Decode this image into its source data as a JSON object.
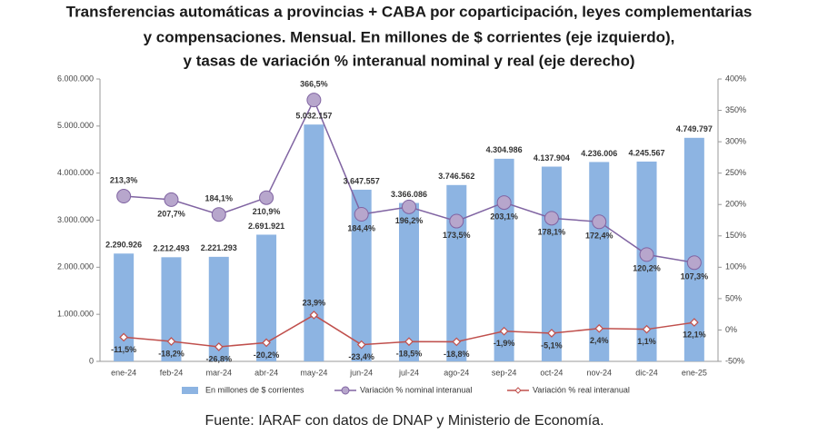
{
  "chart_data": {
    "type": "bar-line",
    "title": [
      "Transferencias automáticas a provincias + CABA por coparticipación, leyes complementarias",
      "y compensaciones. Mensual. En millones de $ corrientes (eje izquierdo),",
      "y tasas de variación % interanual nominal y real (eje derecho)"
    ],
    "categories": [
      "ene-24",
      "feb-24",
      "mar-24",
      "abr-24",
      "may-24",
      "jun-24",
      "jul-24",
      "ago-24",
      "sep-24",
      "oct-24",
      "nov-24",
      "dic-24",
      "ene-25"
    ],
    "series": [
      {
        "name": "En millones de $ corrientes",
        "color": "#8db4e2",
        "type": "bar",
        "values": [
          2290926,
          2212493,
          2221293,
          2691921,
          5032157,
          3647557,
          3366086,
          3746562,
          4304986,
          4137904,
          4236006,
          4245567,
          4749797
        ],
        "value_labels": [
          "2.290.926",
          "2.212.493",
          "2.221.293",
          "2.691.921",
          "5.032.157",
          "3.647.557",
          "3.366.086",
          "3.746.562",
          "4.304.986",
          "4.137.904",
          "4.236.006",
          "4.245.567",
          "4.749.797"
        ]
      },
      {
        "name": "Variación % nominal interanual",
        "color": "#8064a2",
        "type": "line",
        "axis": "y2",
        "values": [
          213.3,
          207.7,
          184.1,
          210.9,
          366.5,
          184.4,
          196.2,
          173.5,
          203.1,
          178.1,
          172.4,
          120.2,
          107.3
        ],
        "value_labels": [
          "213,3%",
          "207,7%",
          "184,1%",
          "210,9%",
          "366,5%",
          "184,4%",
          "196,2%",
          "173,5%",
          "203,1%",
          "178,1%",
          "172,4%",
          "120,2%",
          "107,3%"
        ]
      },
      {
        "name": "Variación % real interanual",
        "color": "#c0504d",
        "type": "line",
        "axis": "y2",
        "values": [
          -11.5,
          -18.2,
          -26.8,
          -20.2,
          23.9,
          -23.4,
          -18.5,
          -18.8,
          -1.9,
          -5.1,
          2.4,
          1.1,
          12.1
        ],
        "value_labels": [
          "-11,5%",
          "-18,2%",
          "-26,8%",
          "-20,2%",
          "23,9%",
          "-23,4%",
          "-18,5%",
          "-18,8%",
          "-1,9%",
          "-5,1%",
          "2,4%",
          "1,1%",
          "12,1%"
        ]
      }
    ],
    "ylim": [
      0,
      6000000
    ],
    "yticks": [
      {
        "value": 0,
        "label": "0"
      },
      {
        "value": 1000000,
        "label": "1.000.000"
      },
      {
        "value": 2000000,
        "label": "2.000.000"
      },
      {
        "value": 3000000,
        "label": "3.000.000"
      },
      {
        "value": 4000000,
        "label": "4.000.000"
      },
      {
        "value": 5000000,
        "label": "5.000.000"
      },
      {
        "value": 6000000,
        "label": "6.000.000"
      }
    ],
    "y2lim": [
      -50,
      400
    ],
    "y2ticks": [
      {
        "value": -50,
        "label": "-50%"
      },
      {
        "value": 0,
        "label": "0%"
      },
      {
        "value": 50,
        "label": "50%"
      },
      {
        "value": 100,
        "label": "100%"
      },
      {
        "value": 150,
        "label": "150%"
      },
      {
        "value": 200,
        "label": "200%"
      },
      {
        "value": 250,
        "label": "250%"
      },
      {
        "value": 300,
        "label": "300%"
      },
      {
        "value": 350,
        "label": "350%"
      },
      {
        "value": 400,
        "label": "400%"
      }
    ],
    "grid": false,
    "legend": "bottom",
    "source": "Fuente: IARAF con datos de DNAP y Ministerio de Economía."
  }
}
